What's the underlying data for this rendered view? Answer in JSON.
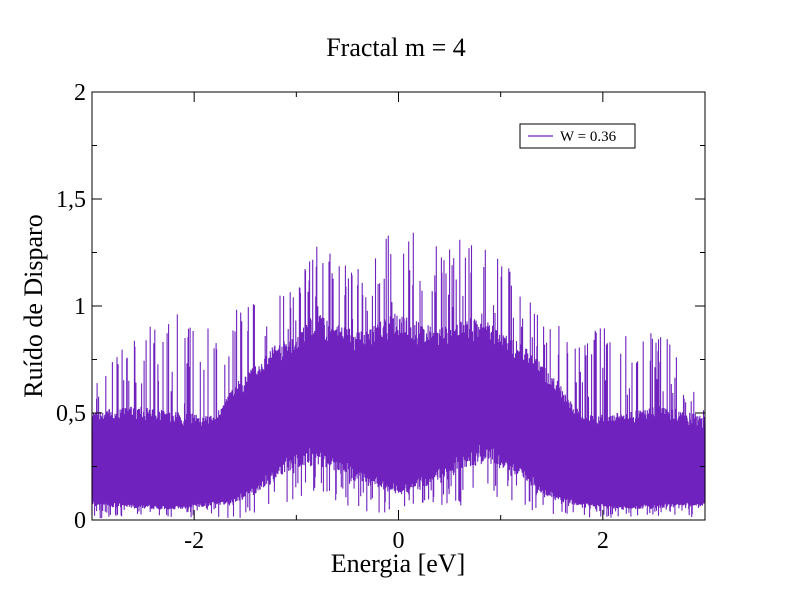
{
  "chart_data": {
    "type": "line",
    "title": "Fractal m = 4",
    "xlabel": "Energia [eV]",
    "ylabel": "Ruído de Disparo",
    "xlim": [
      -3,
      3
    ],
    "ylim": [
      0,
      2
    ],
    "xticks": [
      {
        "value": -2,
        "label": "-2"
      },
      {
        "value": 0,
        "label": "0"
      },
      {
        "value": 2,
        "label": "2"
      }
    ],
    "yticks": [
      {
        "value": 0,
        "label": "0"
      },
      {
        "value": 0.5,
        "label": "0,5"
      },
      {
        "value": 1,
        "label": "1"
      },
      {
        "value": 1.5,
        "label": "1,5"
      },
      {
        "value": 2,
        "label": "2"
      }
    ],
    "grid": false,
    "legend": {
      "placement": "top-right"
    },
    "series": [
      {
        "name": "W = 0.36",
        "color": "#6f22bd",
        "style": "dense oscillating noise band",
        "envelope": {
          "x": [
            -3.0,
            -2.6,
            -2.2,
            -1.8,
            -1.6,
            -1.4,
            -1.2,
            -1.0,
            -0.8,
            -0.6,
            -0.4,
            -0.2,
            0.0,
            0.2,
            0.4,
            0.6,
            0.8,
            1.0,
            1.2,
            1.4,
            1.6,
            1.8,
            2.2,
            2.6,
            3.0
          ],
          "upper": [
            0.65,
            0.85,
            0.98,
            0.88,
            0.98,
            1.02,
            1.05,
            1.1,
            1.34,
            1.2,
            1.2,
            1.25,
            1.47,
            1.3,
            1.32,
            1.36,
            1.28,
            1.25,
            1.1,
            1.0,
            0.98,
            0.9,
            0.98,
            0.88,
            0.5
          ],
          "band_top": [
            0.52,
            0.55,
            0.52,
            0.5,
            0.65,
            0.75,
            0.85,
            0.9,
            1.0,
            0.95,
            0.9,
            0.95,
            1.0,
            0.95,
            0.92,
            0.95,
            1.0,
            0.9,
            0.85,
            0.75,
            0.65,
            0.5,
            0.52,
            0.55,
            0.5
          ],
          "band_bottom": [
            0.08,
            0.07,
            0.06,
            0.08,
            0.1,
            0.15,
            0.25,
            0.3,
            0.32,
            0.28,
            0.22,
            0.18,
            0.15,
            0.18,
            0.22,
            0.28,
            0.32,
            0.3,
            0.25,
            0.15,
            0.1,
            0.08,
            0.06,
            0.07,
            0.08
          ],
          "lower": [
            0.0,
            0.02,
            0.01,
            0.01,
            0.0,
            0.03,
            0.06,
            0.1,
            0.12,
            0.06,
            0.05,
            0.02,
            0.02,
            0.03,
            0.05,
            0.06,
            0.12,
            0.1,
            0.06,
            0.03,
            0.0,
            0.01,
            0.01,
            0.02,
            0.0
          ]
        }
      }
    ]
  }
}
